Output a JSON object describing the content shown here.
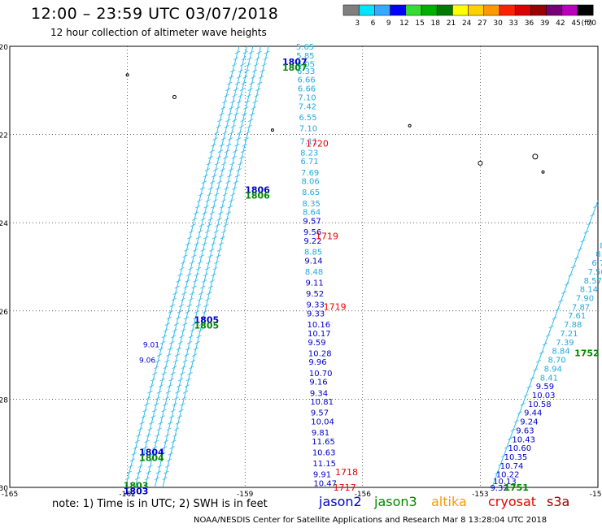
{
  "header": {
    "title": "12:00 – 23:59 UTC 03/07/2018",
    "subtitle": "12 hour collection of altimeter wave heights"
  },
  "legend": {
    "unit": "(ft)",
    "bins": [
      {
        "label": "3",
        "color": "#7f7f7f"
      },
      {
        "label": "6",
        "color": "#00e5ff"
      },
      {
        "label": "9",
        "color": "#33aaff"
      },
      {
        "label": "12",
        "color": "#0000ff"
      },
      {
        "label": "15",
        "color": "#33dd33"
      },
      {
        "label": "18",
        "color": "#00b000"
      },
      {
        "label": "21",
        "color": "#007a00"
      },
      {
        "label": "24",
        "color": "#ffff00"
      },
      {
        "label": "27",
        "color": "#ffd000"
      },
      {
        "label": "30",
        "color": "#ff9900"
      },
      {
        "label": "33",
        "color": "#ff2200"
      },
      {
        "label": "36",
        "color": "#dd0000"
      },
      {
        "label": "39",
        "color": "#990000"
      },
      {
        "label": "42",
        "color": "#770077"
      },
      {
        "label": "45",
        "color": "#bb00bb"
      },
      {
        "label": "70",
        "color": "#000000"
      }
    ]
  },
  "axes": {
    "x_ticks": [
      "-165",
      "-162",
      "-159",
      "-156",
      "-153",
      "-150"
    ],
    "y_ticks": [
      "-20",
      "-22",
      "-24",
      "-26",
      "-28",
      "-30"
    ]
  },
  "colors": {
    "jason2": "#0000cc",
    "jason3": "#008800",
    "altika": "#ff9900",
    "cryosat": "#ee0000",
    "s3a": "#990000",
    "track": "#33bbee",
    "cyan": "#22aadd"
  },
  "time_labels": [
    {
      "text": "1807",
      "lon": -158.05,
      "lat": -20.35,
      "sat": "jason2"
    },
    {
      "text": "1807",
      "lon": -158.05,
      "lat": -20.48,
      "sat": "jason3"
    },
    {
      "text": "1806",
      "lon": -159.0,
      "lat": -23.25,
      "sat": "jason2"
    },
    {
      "text": "1806",
      "lon": -159.0,
      "lat": -23.38,
      "sat": "jason3"
    },
    {
      "text": "1805",
      "lon": -160.3,
      "lat": -26.2,
      "sat": "jason2"
    },
    {
      "text": "1805",
      "lon": -160.3,
      "lat": -26.33,
      "sat": "jason3"
    },
    {
      "text": "1804",
      "lon": -161.7,
      "lat": -29.2,
      "sat": "jason2"
    },
    {
      "text": "1804",
      "lon": -161.7,
      "lat": -29.33,
      "sat": "jason3"
    },
    {
      "text": "1803",
      "lon": -162.1,
      "lat": -29.95,
      "sat": "jason3"
    },
    {
      "text": "1803",
      "lon": -162.1,
      "lat": -30.08,
      "sat": "jason2"
    },
    {
      "text": "1720",
      "lon": -157.45,
      "lat": -22.2,
      "sat": "cryosat"
    },
    {
      "text": "1719",
      "lon": -157.2,
      "lat": -24.3,
      "sat": "cryosat"
    },
    {
      "text": "1719",
      "lon": -157.0,
      "lat": -25.9,
      "sat": "cryosat"
    },
    {
      "text": "1718",
      "lon": -156.7,
      "lat": -29.65,
      "sat": "cryosat"
    },
    {
      "text": "1717",
      "lon": -156.75,
      "lat": -30.0,
      "sat": "cryosat"
    },
    {
      "text": "1752",
      "lon": -150.6,
      "lat": -26.95,
      "sat": "jason3"
    },
    {
      "text": "1751",
      "lon": -152.4,
      "lat": -30.0,
      "sat": "jason3"
    }
  ],
  "track_a": {
    "sat": "cryosat",
    "values": [
      {
        "v": "5.65",
        "lat": -20.0,
        "c": "cyan"
      },
      {
        "v": "5.85",
        "lat": -20.2,
        "c": "cyan"
      },
      {
        "v": "6.05",
        "lat": -20.4,
        "c": "cyan"
      },
      {
        "v": "6.33",
        "lat": -20.55,
        "c": "cyan"
      },
      {
        "v": "6.66",
        "lat": -20.75,
        "c": "cyan"
      },
      {
        "v": "6.66",
        "lat": -20.95,
        "c": "cyan"
      },
      {
        "v": "7.10",
        "lat": -21.15,
        "c": "cyan"
      },
      {
        "v": "7.42",
        "lat": -21.35,
        "c": "cyan"
      },
      {
        "v": "6.55",
        "lat": -21.6,
        "c": "cyan"
      },
      {
        "v": "7.10",
        "lat": -21.85,
        "c": "cyan"
      },
      {
        "v": "7.11",
        "lat": -22.15,
        "c": "cyan"
      },
      {
        "v": "8.23",
        "lat": -22.4,
        "c": "cyan"
      },
      {
        "v": "6.71",
        "lat": -22.6,
        "c": "cyan"
      },
      {
        "v": "7.69",
        "lat": -22.85,
        "c": "cyan"
      },
      {
        "v": "8.06",
        "lat": -23.05,
        "c": "cyan"
      },
      {
        "v": "8.65",
        "lat": -23.3,
        "c": "cyan"
      },
      {
        "v": "8.35",
        "lat": -23.55,
        "c": "cyan"
      },
      {
        "v": "8.64",
        "lat": -23.75,
        "c": "cyan"
      },
      {
        "v": "9.57",
        "lat": -23.95,
        "c": "blue"
      },
      {
        "v": "9.56",
        "lat": -24.2,
        "c": "blue"
      },
      {
        "v": "9.22",
        "lat": -24.4,
        "c": "blue"
      },
      {
        "v": "8.85",
        "lat": -24.65,
        "c": "cyan"
      },
      {
        "v": "9.14",
        "lat": -24.85,
        "c": "blue"
      },
      {
        "v": "8.48",
        "lat": -25.1,
        "c": "cyan"
      },
      {
        "v": "9.11",
        "lat": -25.35,
        "c": "blue"
      },
      {
        "v": "9.52",
        "lat": -25.6,
        "c": "blue"
      },
      {
        "v": "9.33",
        "lat": -25.85,
        "c": "blue"
      },
      {
        "v": "9.33",
        "lat": -26.05,
        "c": "blue"
      },
      {
        "v": "10.16",
        "lat": -26.3,
        "c": "blue"
      },
      {
        "v": "10.17",
        "lat": -26.5,
        "c": "blue"
      },
      {
        "v": "9.59",
        "lat": -26.7,
        "c": "blue"
      },
      {
        "v": "10.28",
        "lat": -26.95,
        "c": "blue"
      },
      {
        "v": "9.96",
        "lat": -27.15,
        "c": "blue"
      },
      {
        "v": "10.70",
        "lat": -27.4,
        "c": "blue"
      },
      {
        "v": "9.16",
        "lat": -27.6,
        "c": "blue"
      },
      {
        "v": "9.34",
        "lat": -27.85,
        "c": "blue"
      },
      {
        "v": "10.81",
        "lat": -28.05,
        "c": "blue"
      },
      {
        "v": "9.57",
        "lat": -28.3,
        "c": "blue"
      },
      {
        "v": "10.04",
        "lat": -28.5,
        "c": "blue"
      },
      {
        "v": "9.81",
        "lat": -28.75,
        "c": "blue"
      },
      {
        "v": "11.65",
        "lat": -28.95,
        "c": "blue"
      },
      {
        "v": "10.63",
        "lat": -29.2,
        "c": "blue"
      },
      {
        "v": "11.15",
        "lat": -29.45,
        "c": "blue"
      },
      {
        "v": "9.91",
        "lat": -29.7,
        "c": "blue"
      },
      {
        "v": "10.47",
        "lat": -29.9,
        "c": "blue"
      }
    ]
  },
  "track_b": {
    "sat": "jason3",
    "values": [
      {
        "v": "7.8",
        "lat": -24.0,
        "c": "cyan"
      },
      {
        "v": "7.84",
        "lat": -24.1,
        "c": "cyan"
      },
      {
        "v": "7.53",
        "lat": -24.3,
        "c": "cyan"
      },
      {
        "v": "8.19",
        "lat": -24.5,
        "c": "cyan"
      },
      {
        "v": "8.02",
        "lat": -24.7,
        "c": "cyan"
      },
      {
        "v": "6.70",
        "lat": -24.9,
        "c": "cyan"
      },
      {
        "v": "7.50",
        "lat": -25.1,
        "c": "cyan"
      },
      {
        "v": "8.57",
        "lat": -25.3,
        "c": "cyan"
      },
      {
        "v": "8.14",
        "lat": -25.5,
        "c": "cyan"
      },
      {
        "v": "7.90",
        "lat": -25.7,
        "c": "cyan"
      },
      {
        "v": "7.87",
        "lat": -25.9,
        "c": "cyan"
      },
      {
        "v": "7.61",
        "lat": -26.1,
        "c": "cyan"
      },
      {
        "v": "7.88",
        "lat": -26.3,
        "c": "cyan"
      },
      {
        "v": "7.21",
        "lat": -26.5,
        "c": "cyan"
      },
      {
        "v": "7.39",
        "lat": -26.7,
        "c": "cyan"
      },
      {
        "v": "8.84",
        "lat": -26.9,
        "c": "cyan"
      },
      {
        "v": "8.70",
        "lat": -27.1,
        "c": "cyan"
      },
      {
        "v": "8.94",
        "lat": -27.3,
        "c": "cyan"
      },
      {
        "v": "8.41",
        "lat": -27.5,
        "c": "cyan"
      },
      {
        "v": "9.59",
        "lat": -27.7,
        "c": "blue"
      },
      {
        "v": "10.03",
        "lat": -27.9,
        "c": "blue"
      },
      {
        "v": "10.58",
        "lat": -28.1,
        "c": "blue"
      },
      {
        "v": "9.44",
        "lat": -28.3,
        "c": "blue"
      },
      {
        "v": "9.24",
        "lat": -28.5,
        "c": "blue"
      },
      {
        "v": "9.63",
        "lat": -28.7,
        "c": "blue"
      },
      {
        "v": "10.43",
        "lat": -28.9,
        "c": "blue"
      },
      {
        "v": "10.60",
        "lat": -29.1,
        "c": "blue"
      },
      {
        "v": "10.35",
        "lat": -29.3,
        "c": "blue"
      },
      {
        "v": "10.74",
        "lat": -29.5,
        "c": "blue"
      },
      {
        "v": "10.22",
        "lat": -29.7,
        "c": "blue"
      },
      {
        "v": "10.13",
        "lat": -29.85,
        "c": "blue"
      },
      {
        "v": "9.32",
        "lat": -30.0,
        "c": "blue"
      }
    ]
  },
  "track_c_partial": [
    {
      "v": "9.01",
      "lon": -161.6,
      "lat": -26.75
    },
    {
      "v": "9.06",
      "lon": -161.7,
      "lat": -27.1
    }
  ],
  "footer": {
    "note": "note:  1) Time is in UTC;  2) SWH is in feet",
    "credit": "NOAA/NESDIS Center for Satellite Applications and Research    Mar  8 13:28:04 UTC 2018",
    "satellites": [
      "jason2",
      "jason3",
      "altika",
      "cryosat",
      "s3a"
    ]
  }
}
